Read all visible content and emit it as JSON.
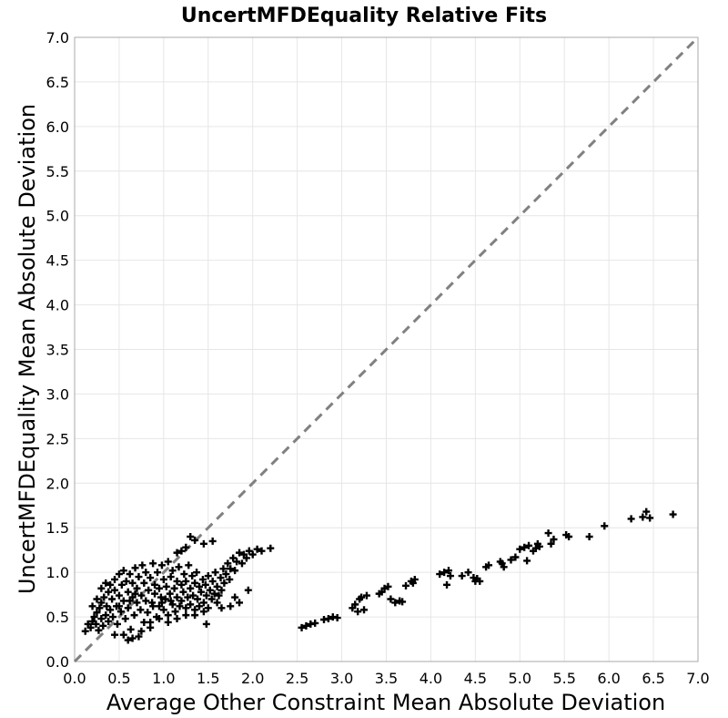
{
  "chart_data": {
    "type": "scatter",
    "title": "UncertMFDEquality Relative Fits",
    "xlabel": "Average Other Constraint Mean Absolute Deviation",
    "ylabel": "UncertMFDEquality Mean Absolute Deviation",
    "xlim": [
      0.0,
      7.0
    ],
    "ylim": [
      0.0,
      7.0
    ],
    "x_ticks": [
      "0.0",
      "0.5",
      "1.0",
      "1.5",
      "2.0",
      "2.5",
      "3.0",
      "3.5",
      "4.0",
      "4.5",
      "5.0",
      "5.5",
      "6.0",
      "6.5",
      "7.0"
    ],
    "y_ticks": [
      "0.0",
      "0.5",
      "1.0",
      "1.5",
      "2.0",
      "2.5",
      "3.0",
      "3.5",
      "4.0",
      "4.5",
      "5.0",
      "5.5",
      "6.0",
      "6.5",
      "7.0"
    ],
    "grid": true,
    "legend": "none",
    "marker": "plus",
    "marker_color": "#000000",
    "reference_line": {
      "x": [
        0.0,
        7.0
      ],
      "y": [
        0.0,
        7.0
      ],
      "style": "dashed",
      "color": "#808080"
    },
    "series": [
      {
        "points": [
          [
            0.18,
            0.38
          ],
          [
            0.2,
            0.45
          ],
          [
            0.22,
            0.5
          ],
          [
            0.24,
            0.42
          ],
          [
            0.25,
            0.55
          ],
          [
            0.27,
            0.35
          ],
          [
            0.28,
            0.6
          ],
          [
            0.3,
            0.48
          ],
          [
            0.3,
            0.66
          ],
          [
            0.32,
            0.4
          ],
          [
            0.33,
            0.72
          ],
          [
            0.35,
            0.52
          ],
          [
            0.36,
            0.62
          ],
          [
            0.38,
            0.45
          ],
          [
            0.38,
            0.78
          ],
          [
            0.4,
            0.58
          ],
          [
            0.4,
            0.86
          ],
          [
            0.42,
            0.7
          ],
          [
            0.43,
            0.5
          ],
          [
            0.45,
            0.8
          ],
          [
            0.45,
            0.92
          ],
          [
            0.47,
            0.62
          ],
          [
            0.48,
            0.42
          ],
          [
            0.5,
            0.74
          ],
          [
            0.5,
            0.98
          ],
          [
            0.52,
            0.56
          ],
          [
            0.53,
            0.86
          ],
          [
            0.55,
            0.68
          ],
          [
            0.55,
            1.02
          ],
          [
            0.57,
            0.48
          ],
          [
            0.58,
            0.9
          ],
          [
            0.6,
            0.6
          ],
          [
            0.6,
            0.78
          ],
          [
            0.62,
            0.98
          ],
          [
            0.63,
            0.36
          ],
          [
            0.65,
            0.72
          ],
          [
            0.65,
            0.88
          ],
          [
            0.67,
            0.52
          ],
          [
            0.68,
            1.05
          ],
          [
            0.7,
            0.66
          ],
          [
            0.7,
            0.82
          ],
          [
            0.72,
            0.28
          ],
          [
            0.72,
            0.95
          ],
          [
            0.74,
            0.58
          ],
          [
            0.75,
            0.74
          ],
          [
            0.76,
            1.08
          ],
          [
            0.78,
            0.44
          ],
          [
            0.78,
            0.88
          ],
          [
            0.8,
            0.68
          ],
          [
            0.8,
            1.0
          ],
          [
            0.82,
            0.55
          ],
          [
            0.83,
            0.8
          ],
          [
            0.85,
            0.94
          ],
          [
            0.85,
            0.38
          ],
          [
            0.87,
            0.66
          ],
          [
            0.88,
            1.1
          ],
          [
            0.9,
            0.76
          ],
          [
            0.9,
            0.86
          ],
          [
            0.92,
            0.5
          ],
          [
            0.93,
            1.0
          ],
          [
            0.95,
            0.62
          ],
          [
            0.95,
            0.82
          ],
          [
            0.97,
            0.72
          ],
          [
            0.98,
            1.08
          ],
          [
            1.0,
            0.58
          ],
          [
            1.0,
            0.92
          ],
          [
            1.02,
            0.7
          ],
          [
            1.03,
            0.84
          ],
          [
            1.05,
            1.12
          ],
          [
            1.05,
            0.52
          ],
          [
            1.07,
            0.76
          ],
          [
            1.08,
            0.95
          ],
          [
            1.1,
            0.64
          ],
          [
            1.1,
            1.02
          ],
          [
            1.12,
            0.82
          ],
          [
            1.13,
            0.56
          ],
          [
            1.15,
            0.9
          ],
          [
            1.15,
            0.72
          ],
          [
            1.17,
            1.06
          ],
          [
            1.18,
            0.62
          ],
          [
            1.2,
            0.86
          ],
          [
            1.2,
            0.68
          ],
          [
            1.22,
            0.78
          ],
          [
            1.23,
            0.98
          ],
          [
            1.25,
            0.6
          ],
          [
            1.25,
            0.9
          ],
          [
            1.27,
            0.72
          ],
          [
            1.28,
            1.08
          ],
          [
            1.3,
            0.82
          ],
          [
            1.3,
            0.64
          ],
          [
            1.32,
            0.96
          ],
          [
            1.33,
            0.74
          ],
          [
            1.35,
            0.88
          ],
          [
            1.35,
            0.58
          ],
          [
            1.37,
            1.0
          ],
          [
            1.38,
            0.7
          ],
          [
            1.4,
            0.84
          ],
          [
            1.4,
            0.62
          ],
          [
            1.42,
            0.78
          ],
          [
            1.44,
            0.92
          ],
          [
            1.45,
            0.66
          ],
          [
            1.47,
            0.86
          ],
          [
            1.48,
            0.74
          ],
          [
            1.5,
            0.96
          ],
          [
            1.5,
            0.6
          ],
          [
            1.52,
            0.8
          ],
          [
            1.54,
            0.7
          ],
          [
            1.55,
            0.9
          ],
          [
            1.57,
            0.76
          ],
          [
            1.58,
            1.0
          ],
          [
            1.6,
            0.66
          ],
          [
            1.6,
            0.84
          ],
          [
            1.62,
            0.74
          ],
          [
            1.64,
            0.94
          ],
          [
            1.65,
            0.8
          ],
          [
            1.67,
            1.04
          ],
          [
            1.68,
            0.88
          ],
          [
            1.7,
            0.98
          ],
          [
            1.72,
            1.1
          ],
          [
            1.74,
            0.92
          ],
          [
            1.75,
            1.04
          ],
          [
            1.78,
            1.16
          ],
          [
            1.8,
            1.02
          ],
          [
            1.82,
            1.12
          ],
          [
            1.85,
            1.22
          ],
          [
            1.88,
            1.1
          ],
          [
            1.9,
            1.2
          ],
          [
            1.93,
            1.16
          ],
          [
            1.96,
            1.24
          ],
          [
            2.0,
            1.2
          ],
          [
            2.05,
            1.26
          ],
          [
            2.1,
            1.24
          ],
          [
            2.2,
            1.27
          ],
          [
            1.3,
            1.4
          ],
          [
            1.35,
            1.36
          ],
          [
            1.45,
            1.32
          ],
          [
            1.55,
            1.35
          ],
          [
            1.2,
            1.24
          ],
          [
            1.25,
            1.28
          ],
          [
            1.15,
            1.22
          ],
          [
            0.12,
            0.34
          ],
          [
            0.15,
            0.42
          ],
          [
            0.2,
            0.62
          ],
          [
            0.25,
            0.7
          ],
          [
            0.3,
            0.82
          ],
          [
            0.35,
            0.88
          ],
          [
            0.45,
            0.3
          ],
          [
            0.55,
            0.3
          ],
          [
            0.6,
            0.24
          ],
          [
            0.65,
            0.26
          ],
          [
            0.75,
            0.34
          ],
          [
            0.85,
            0.44
          ],
          [
            0.95,
            0.48
          ],
          [
            1.05,
            0.44
          ],
          [
            1.15,
            0.48
          ],
          [
            1.25,
            0.52
          ],
          [
            1.35,
            0.52
          ],
          [
            1.45,
            0.56
          ],
          [
            1.48,
            0.42
          ],
          [
            1.8,
            0.72
          ],
          [
            1.85,
            0.66
          ],
          [
            1.95,
            0.8
          ],
          [
            1.75,
            0.62
          ],
          [
            1.65,
            0.6
          ],
          [
            0.5,
            0.62
          ],
          [
            0.62,
            0.68
          ],
          [
            0.68,
            0.76
          ],
          [
            0.88,
            0.62
          ],
          [
            0.98,
            0.66
          ],
          [
            1.08,
            0.68
          ],
          [
            2.55,
            0.38
          ],
          [
            2.6,
            0.4
          ],
          [
            2.65,
            0.42
          ],
          [
            2.7,
            0.43
          ],
          [
            2.8,
            0.47
          ],
          [
            2.85,
            0.48
          ],
          [
            2.9,
            0.5
          ],
          [
            2.95,
            0.49
          ],
          [
            3.12,
            0.6
          ],
          [
            3.15,
            0.64
          ],
          [
            3.18,
            0.56
          ],
          [
            3.2,
            0.7
          ],
          [
            3.22,
            0.72
          ],
          [
            3.25,
            0.58
          ],
          [
            3.28,
            0.74
          ],
          [
            3.42,
            0.76
          ],
          [
            3.45,
            0.78
          ],
          [
            3.48,
            0.82
          ],
          [
            3.52,
            0.84
          ],
          [
            3.55,
            0.7
          ],
          [
            3.6,
            0.66
          ],
          [
            3.65,
            0.68
          ],
          [
            3.68,
            0.67
          ],
          [
            3.72,
            0.85
          ],
          [
            3.78,
            0.9
          ],
          [
            3.82,
            0.92
          ],
          [
            3.8,
            0.88
          ],
          [
            4.1,
            0.98
          ],
          [
            4.15,
            1.0
          ],
          [
            4.18,
            0.86
          ],
          [
            4.2,
            1.02
          ],
          [
            4.22,
            0.96
          ],
          [
            4.35,
            0.96
          ],
          [
            4.42,
            1.0
          ],
          [
            4.48,
            0.94
          ],
          [
            4.5,
            0.9
          ],
          [
            4.52,
            0.93
          ],
          [
            4.55,
            0.9
          ],
          [
            4.62,
            1.06
          ],
          [
            4.65,
            1.08
          ],
          [
            4.78,
            1.12
          ],
          [
            4.8,
            1.1
          ],
          [
            4.82,
            1.06
          ],
          [
            4.9,
            1.14
          ],
          [
            4.95,
            1.17
          ],
          [
            5.0,
            1.26
          ],
          [
            5.05,
            1.28
          ],
          [
            5.08,
            1.13
          ],
          [
            5.1,
            1.3
          ],
          [
            5.15,
            1.24
          ],
          [
            5.18,
            1.27
          ],
          [
            5.2,
            1.32
          ],
          [
            5.22,
            1.29
          ],
          [
            5.32,
            1.44
          ],
          [
            5.35,
            1.32
          ],
          [
            5.38,
            1.37
          ],
          [
            5.52,
            1.42
          ],
          [
            5.55,
            1.4
          ],
          [
            5.78,
            1.4
          ],
          [
            5.95,
            1.52
          ],
          [
            6.25,
            1.6
          ],
          [
            6.38,
            1.62
          ],
          [
            6.42,
            1.68
          ],
          [
            6.46,
            1.61
          ],
          [
            6.72,
            1.65
          ]
        ]
      }
    ]
  }
}
